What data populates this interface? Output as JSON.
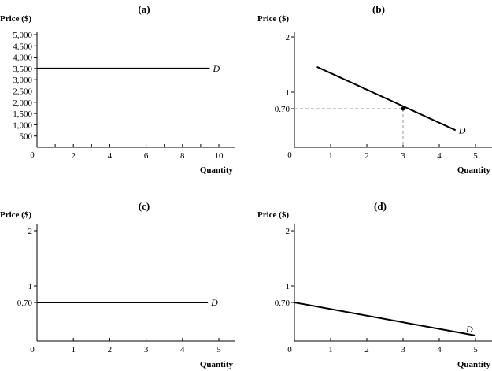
{
  "chart_data": [
    {
      "panel": "(a)",
      "type": "line",
      "ylabel": "Price ($)",
      "xlabel": "Quantity",
      "xticks": [
        "2",
        "4",
        "6",
        "8",
        "10"
      ],
      "yticks": [
        "500",
        "1,000",
        "1,500",
        "2,000",
        "2,500",
        "3,000",
        "3,500",
        "4,000",
        "4,500",
        "5,000"
      ],
      "origin_label": "0",
      "xlim": [
        0,
        10
      ],
      "ylim": [
        0,
        5000
      ],
      "series": [
        {
          "name": "D",
          "points": [
            [
              0,
              3500
            ],
            [
              9.5,
              3500
            ]
          ]
        }
      ]
    },
    {
      "panel": "(b)",
      "type": "line",
      "ylabel": "Price ($)",
      "xlabel": "Quantity",
      "xticks": [
        "1",
        "2",
        "3",
        "4",
        "5"
      ],
      "yticks": [
        "0.70",
        "1",
        "2"
      ],
      "origin_label": "0",
      "xlim": [
        0,
        5
      ],
      "ylim": [
        0,
        2
      ],
      "series": [
        {
          "name": "D",
          "points": [
            [
              0.62,
              1.46
            ],
            [
              4.45,
              0.31
            ]
          ]
        }
      ],
      "marker": {
        "x": 3,
        "y": 0.7
      },
      "guides": true
    },
    {
      "panel": "(c)",
      "type": "line",
      "ylabel": "Price ($)",
      "xlabel": "Quantity",
      "xticks": [
        "1",
        "2",
        "3",
        "4",
        "5"
      ],
      "yticks": [
        "0.70",
        "1",
        "2"
      ],
      "origin_label": "0",
      "xlim": [
        0,
        5
      ],
      "ylim": [
        0,
        2
      ],
      "series": [
        {
          "name": "D",
          "points": [
            [
              0,
              0.7
            ],
            [
              4.7,
              0.7
            ]
          ]
        }
      ]
    },
    {
      "panel": "(d)",
      "type": "line",
      "ylabel": "Price ($)",
      "xlabel": "Quantity",
      "xticks": [
        "1",
        "2",
        "3",
        "4",
        "5"
      ],
      "yticks": [
        "0.70",
        "1",
        "2"
      ],
      "origin_label": "0",
      "xlim": [
        0,
        5
      ],
      "ylim": [
        0,
        2
      ],
      "series": [
        {
          "name": "D",
          "points": [
            [
              0,
              0.7
            ],
            [
              5,
              0.1
            ]
          ]
        }
      ]
    }
  ]
}
